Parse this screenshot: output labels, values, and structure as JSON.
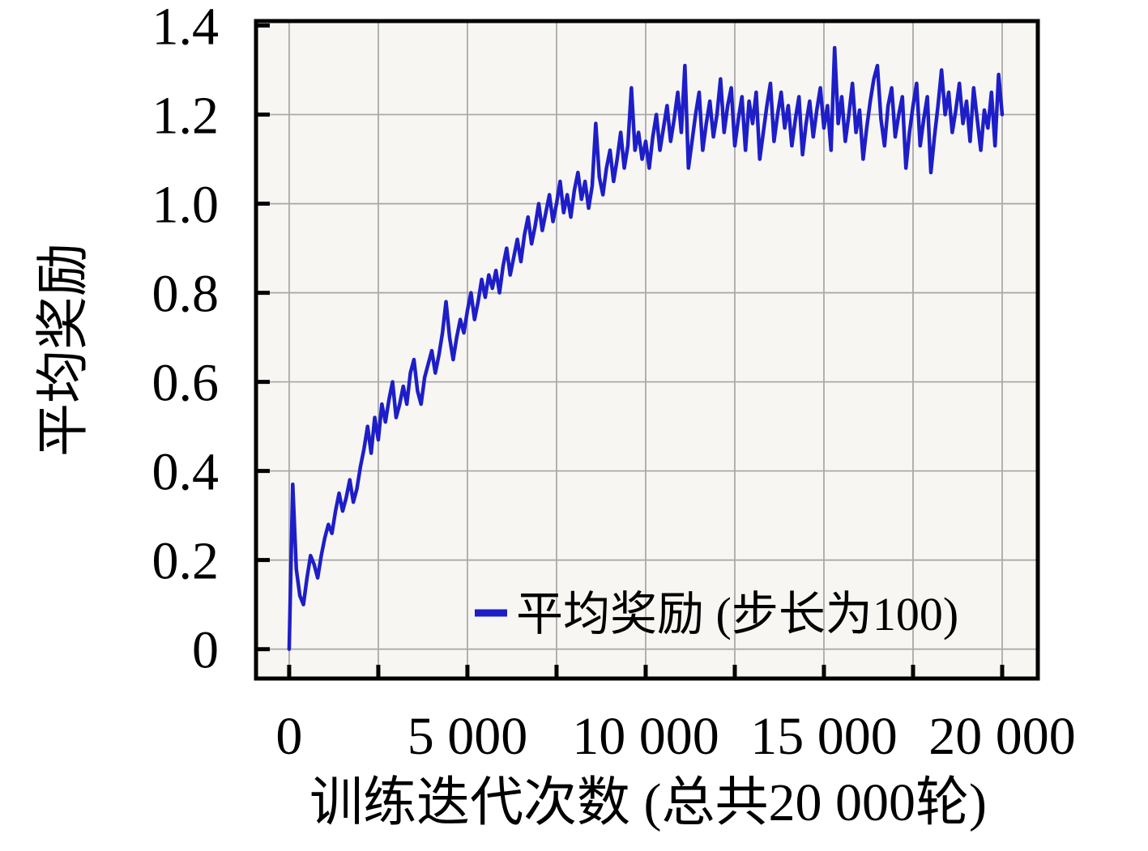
{
  "figure": {
    "background": "#ffffff",
    "plot_background": "#f7f6f2",
    "frame_color": "#000000",
    "grid_color": "#aaaaaa",
    "tick_color": "#000000",
    "text_color": "#000000"
  },
  "chart_data": {
    "type": "line",
    "title": "",
    "xlabel": "训练迭代次数 (总共20 000轮)",
    "ylabel": "平均奖励",
    "grid": true,
    "legend_position": "inside-bottom-right",
    "legend": {
      "label": "平均奖励 (步长为100)",
      "marker_color": "#1e1ec8"
    },
    "xlim": [
      -930,
      21000
    ],
    "ylim": [
      -0.066,
      1.41
    ],
    "x_ticks": [
      {
        "value": 0,
        "label": "0"
      },
      {
        "value": 5000,
        "label": "5 000"
      },
      {
        "value": 10000,
        "label": "10 000"
      },
      {
        "value": 15000,
        "label": "15 000"
      },
      {
        "value": 20000,
        "label": "20 000"
      }
    ],
    "x_tick_step": 2500,
    "x_grid_step": 2500,
    "y_ticks": [
      {
        "value": 0.0,
        "label": "0"
      },
      {
        "value": 0.2,
        "label": "0.2"
      },
      {
        "value": 0.4,
        "label": "0.4"
      },
      {
        "value": 0.6,
        "label": "0.6"
      },
      {
        "value": 0.8,
        "label": "0.8"
      },
      {
        "value": 1.0,
        "label": "1.0"
      },
      {
        "value": 1.2,
        "label": "1.2"
      },
      {
        "value": 1.4,
        "label": "1.4"
      }
    ],
    "y_grid_values": [
      0.0,
      0.2,
      0.4,
      0.6,
      0.8,
      1.0,
      1.2
    ],
    "series": [
      {
        "name": "平均奖励 (步长为100)",
        "color": "#1e1ec8",
        "x_start": 0,
        "x_step": 100,
        "values": [
          0.0,
          0.37,
          0.18,
          0.12,
          0.1,
          0.16,
          0.21,
          0.19,
          0.16,
          0.21,
          0.25,
          0.28,
          0.26,
          0.31,
          0.35,
          0.31,
          0.34,
          0.38,
          0.33,
          0.36,
          0.41,
          0.45,
          0.5,
          0.44,
          0.52,
          0.47,
          0.55,
          0.51,
          0.56,
          0.6,
          0.52,
          0.55,
          0.59,
          0.55,
          0.62,
          0.65,
          0.58,
          0.55,
          0.61,
          0.64,
          0.67,
          0.62,
          0.66,
          0.71,
          0.78,
          0.7,
          0.65,
          0.7,
          0.74,
          0.71,
          0.76,
          0.8,
          0.74,
          0.78,
          0.83,
          0.79,
          0.84,
          0.81,
          0.85,
          0.8,
          0.86,
          0.9,
          0.84,
          0.88,
          0.92,
          0.87,
          0.93,
          0.97,
          0.91,
          0.95,
          1.0,
          0.94,
          0.98,
          1.02,
          0.96,
          1.0,
          1.05,
          0.98,
          1.02,
          0.97,
          1.03,
          1.07,
          1.01,
          1.05,
          0.99,
          1.04,
          1.18,
          1.06,
          1.02,
          1.08,
          1.12,
          1.05,
          1.1,
          1.16,
          1.08,
          1.13,
          1.26,
          1.12,
          1.16,
          1.1,
          1.14,
          1.08,
          1.15,
          1.2,
          1.12,
          1.17,
          1.22,
          1.14,
          1.19,
          1.25,
          1.16,
          1.31,
          1.08,
          1.14,
          1.2,
          1.25,
          1.12,
          1.18,
          1.23,
          1.15,
          1.2,
          1.28,
          1.16,
          1.22,
          1.26,
          1.13,
          1.19,
          1.24,
          1.12,
          1.23,
          1.18,
          1.25,
          1.1,
          1.16,
          1.22,
          1.27,
          1.14,
          1.2,
          1.25,
          1.17,
          1.22,
          1.13,
          1.19,
          1.24,
          1.11,
          1.18,
          1.23,
          1.15,
          1.21,
          1.26,
          1.17,
          1.22,
          1.12,
          1.35,
          1.18,
          1.24,
          1.14,
          1.2,
          1.27,
          1.16,
          1.21,
          1.1,
          1.17,
          1.23,
          1.28,
          1.31,
          1.19,
          1.13,
          1.22,
          1.26,
          1.15,
          1.2,
          1.24,
          1.08,
          1.16,
          1.22,
          1.27,
          1.13,
          1.19,
          1.24,
          1.07,
          1.15,
          1.22,
          1.3,
          1.2,
          1.25,
          1.16,
          1.21,
          1.27,
          1.18,
          1.23,
          1.14,
          1.26,
          1.19,
          1.12,
          1.21,
          1.17,
          1.25,
          1.13,
          1.29,
          1.2
        ]
      }
    ]
  }
}
